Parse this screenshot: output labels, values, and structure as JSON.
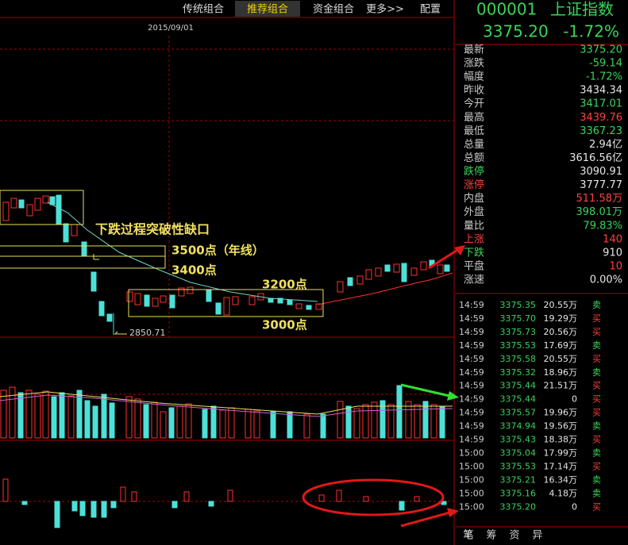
{
  "toolbar": {
    "tabs": [
      "传统组合",
      "推荐组合",
      "资金组合",
      "更多>>",
      "配置"
    ],
    "active": "推荐组合"
  },
  "chart": {
    "date": "2015/09/01",
    "low_label": "2850.71",
    "annotations": [
      "下跌过程突破性缺口",
      "3500点（年线）",
      "3400点",
      "3200点",
      "3000点"
    ]
  },
  "quote": {
    "code": "000001",
    "name": "上证指数",
    "price": "3375.20",
    "change_pct": "-1.72%",
    "color": "#3cd35a"
  },
  "stats": [
    {
      "label": "最新",
      "value": "3375.20",
      "color": "#3cd35a"
    },
    {
      "label": "涨跌",
      "value": "-59.14",
      "color": "#3cd35a"
    },
    {
      "label": "幅度",
      "value": "-1.72%",
      "color": "#3cd35a"
    },
    {
      "label": "昨收",
      "value": "3434.34",
      "color": "#e6e6e6"
    },
    {
      "label": "今开",
      "value": "3417.01",
      "color": "#3cd35a"
    },
    {
      "label": "最高",
      "value": "3439.76",
      "color": "#ff4040"
    },
    {
      "label": "最低",
      "value": "3367.23",
      "color": "#3cd35a"
    },
    {
      "label": "总量",
      "value": "2.94亿",
      "color": "#e6e6e6"
    },
    {
      "label": "总额",
      "value": "3616.56亿",
      "color": "#e6e6e6"
    },
    {
      "label": "跌停",
      "value": "3090.91",
      "color": "#e6e6e6",
      "label_color": "#3cd35a"
    },
    {
      "label": "涨停",
      "value": "3777.77",
      "color": "#e6e6e6",
      "label_color": "#ff4040"
    },
    {
      "label": "内盘",
      "value": "511.58万",
      "color": "#ff4040"
    },
    {
      "label": "外盘",
      "value": "398.01万",
      "color": "#3cd35a"
    },
    {
      "label": "量比",
      "value": "79.83%",
      "color": "#3cd35a"
    },
    {
      "label": "上涨",
      "value": "140",
      "color": "#ff4040",
      "label_color": "#ff4040"
    },
    {
      "label": "下跌",
      "value": "910",
      "color": "#e6e6e6",
      "label_color": "#3cd35a"
    },
    {
      "label": "平盘",
      "value": "10",
      "color": "#ff4040"
    },
    {
      "label": "涨速",
      "value": "0.00%",
      "color": "#e6e6e6"
    }
  ],
  "trades": [
    [
      "14:59",
      "3375.35",
      "20.55万",
      "卖"
    ],
    [
      "14:59",
      "3375.70",
      "19.29万",
      "买"
    ],
    [
      "14:59",
      "3375.73",
      "20.56万",
      "买"
    ],
    [
      "14:59",
      "3375.53",
      "17.69万",
      "卖"
    ],
    [
      "14:59",
      "3375.58",
      "20.55万",
      "买"
    ],
    [
      "14:59",
      "3375.32",
      "18.96万",
      "卖"
    ],
    [
      "14:59",
      "3375.44",
      "21.51万",
      "买"
    ],
    [
      "14:59",
      "3375.44",
      "0",
      "买"
    ],
    [
      "14:59",
      "3375.57",
      "19.96万",
      "买"
    ],
    [
      "14:59",
      "3374.94",
      "19.56万",
      "卖"
    ],
    [
      "14:59",
      "3375.43",
      "18.38万",
      "买"
    ],
    [
      "15:00",
      "3375.04",
      "17.99万",
      "卖"
    ],
    [
      "15:00",
      "3375.53",
      "17.14万",
      "买"
    ],
    [
      "15:00",
      "3375.21",
      "16.34万",
      "卖"
    ],
    [
      "15:00",
      "3375.16",
      "4.18万",
      "卖"
    ],
    [
      "15:00",
      "3375.20",
      "0",
      "买"
    ]
  ],
  "bottom_tabs": [
    "笔",
    "筹",
    "资",
    "异"
  ]
}
